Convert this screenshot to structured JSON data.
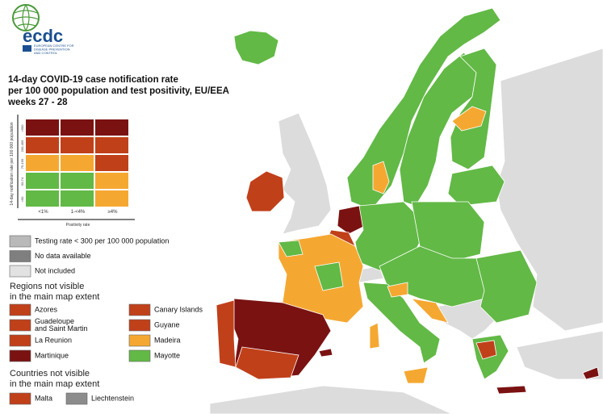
{
  "logo": {
    "name": "ecdc",
    "subtitle_lines": [
      "EUROPEAN CENTRE FOR",
      "DISEASE PREVENTION",
      "AND CONTROL"
    ]
  },
  "title_lines": [
    "14-day COVID-19 case notification rate",
    "per 100 000 population and test positivity, EU/EEA",
    "weeks 27 - 28"
  ],
  "matrix": {
    "y_axis_label": "14-day notification rate per 100 000 population",
    "y_levels": [
      ">500",
      "200-499",
      "75-199",
      "50-74",
      "<50"
    ],
    "x_levels": [
      "<1%",
      "1-<4%",
      "≥4%"
    ],
    "x_axis_label": "Positivity rate",
    "cells": [
      [
        "#7a1212",
        "#7a1212",
        "#7a1212"
      ],
      [
        "#c0401a",
        "#c0401a",
        "#c0401a"
      ],
      [
        "#f5a831",
        "#f5a831",
        "#c0401a"
      ],
      [
        "#62b946",
        "#62b946",
        "#f5a831"
      ],
      [
        "#62b946",
        "#62b946",
        "#f5a831"
      ]
    ]
  },
  "gray_legend": [
    {
      "label": "Testing rate < 300 per 100 000 population",
      "color": "#b9b9b9"
    },
    {
      "label": "No data available",
      "color": "#7f7f7f"
    },
    {
      "label": "Not included",
      "color": "#e2e2e2"
    }
  ],
  "regions_heading": [
    "Regions not visible",
    "in the main map extent"
  ],
  "regions": [
    {
      "label": [
        "Azores"
      ],
      "color": "#c0401a"
    },
    {
      "label": [
        "Canary Islands"
      ],
      "color": "#c0401a"
    },
    {
      "label": [
        "Guadeloupe",
        "and Saint Martin"
      ],
      "color": "#c0401a"
    },
    {
      "label": [
        "Guyane"
      ],
      "color": "#c0401a"
    },
    {
      "label": [
        "La Reunion"
      ],
      "color": "#c0401a"
    },
    {
      "label": [
        "Madeira"
      ],
      "color": "#f5a831"
    },
    {
      "label": [
        "Martinique"
      ],
      "color": "#7a1212"
    },
    {
      "label": [
        "Mayotte"
      ],
      "color": "#62b946"
    }
  ],
  "countries_heading": [
    "Countries not visible",
    "in the main map extent"
  ],
  "countries": [
    {
      "label": [
        "Malta"
      ],
      "color": "#c0401a"
    },
    {
      "label": [
        "Liechtenstein"
      ],
      "color": "#8c8c8c"
    }
  ]
}
